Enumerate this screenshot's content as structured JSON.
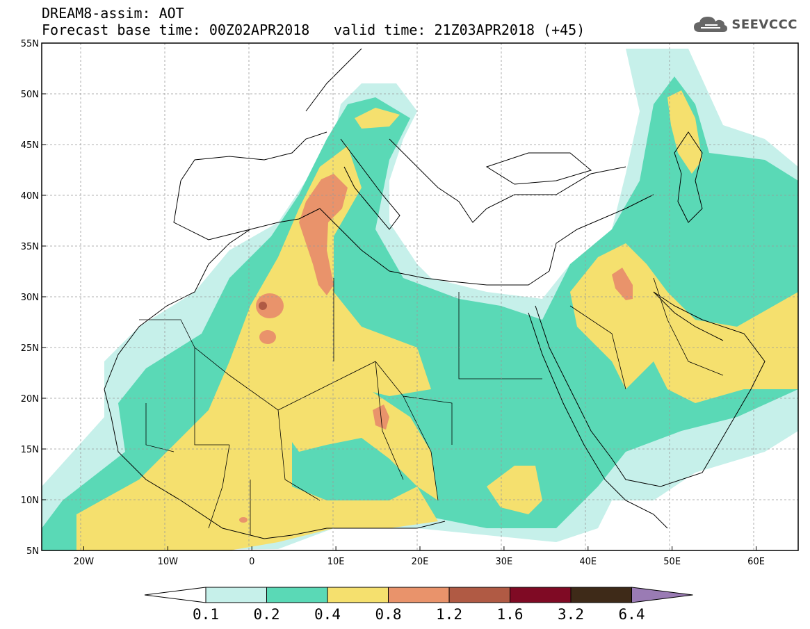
{
  "header": {
    "line1": "DREAM8-assim: AOT",
    "line2": "Forecast base time: 00Z02APR2018",
    "line3": "valid time: 21Z03APR2018 (+45)"
  },
  "logo": {
    "text": "SEEVCCC",
    "icon": "cloud-icon"
  },
  "map": {
    "lat_labels": [
      "55N",
      "50N",
      "45N",
      "40N",
      "35N",
      "30N",
      "25N",
      "20N",
      "15N",
      "10N",
      "5N"
    ],
    "lon_labels": [
      "20W",
      "10W",
      "0",
      "10E",
      "20E",
      "30E",
      "40E",
      "50E",
      "60E"
    ],
    "extent": {
      "lon": [
        -25,
        65
      ],
      "lat": [
        5,
        55
      ]
    }
  },
  "colorbar": {
    "labels": [
      "0.1",
      "0.2",
      "0.4",
      "0.8",
      "1.2",
      "1.6",
      "3.2",
      "6.4"
    ],
    "colors": [
      "#ffffff",
      "#c6f0ea",
      "#5ad9b6",
      "#f5e06e",
      "#e9936b",
      "#b05a44",
      "#7f0a24",
      "#3e2a18",
      "#9a7bb4"
    ]
  }
}
